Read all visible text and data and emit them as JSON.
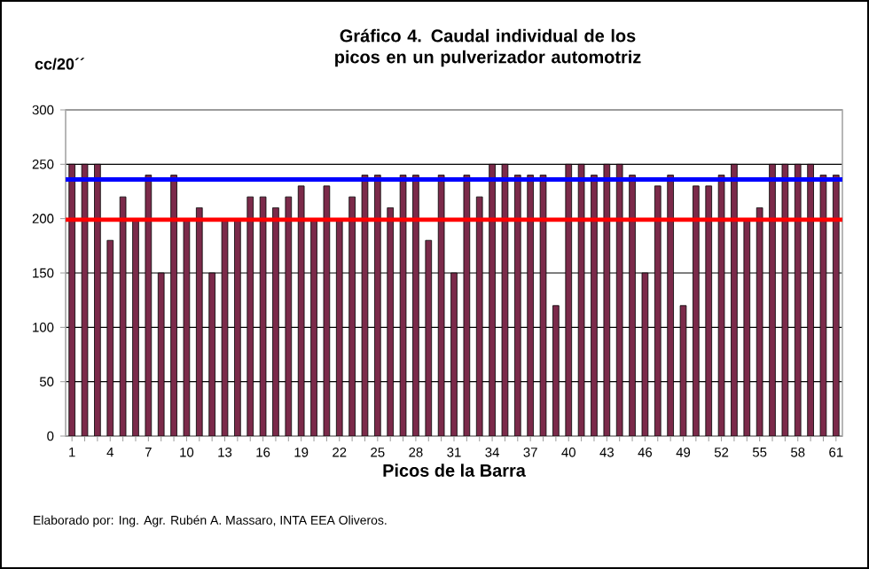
{
  "chart_data": {
    "type": "bar",
    "title": "Gráfico 4. Caudal individual de los picos en un pulverizador automotriz",
    "ylabel": "cc/20´´",
    "xlabel": "Picos de la Barra",
    "annotations": [
      "Elaborado por: Ing. Agr. Rubén A. Massaro, INTA EEA Oliveros."
    ],
    "categories": [
      "1",
      null,
      null,
      "4",
      null,
      null,
      "7",
      null,
      null,
      "10",
      null,
      null,
      "13",
      null,
      null,
      "16",
      null,
      null,
      "19",
      null,
      null,
      "22",
      null,
      null,
      "25",
      null,
      null,
      "28",
      null,
      null,
      "31",
      null,
      null,
      "34",
      null,
      null,
      "37",
      null,
      null,
      "40",
      null,
      null,
      "43",
      null,
      null,
      "46",
      null,
      null,
      "49",
      null,
      null,
      "52",
      null,
      null,
      "55",
      null,
      null,
      "58",
      null,
      null,
      "61"
    ],
    "values": [
      250,
      250,
      250,
      180,
      220,
      200,
      240,
      150,
      240,
      200,
      210,
      150,
      200,
      200,
      220,
      220,
      210,
      220,
      230,
      200,
      230,
      200,
      220,
      240,
      240,
      210,
      240,
      240,
      180,
      240,
      150,
      240,
      220,
      250,
      250,
      240,
      240,
      240,
      120,
      250,
      250,
      240,
      250,
      250,
      240,
      150,
      230,
      240,
      120,
      230,
      230,
      240,
      250,
      200,
      210,
      250,
      250,
      250,
      250,
      240,
      240
    ],
    "color": "#7b2a4a",
    "ylim": [
      0,
      300
    ],
    "yticks": [
      0,
      50,
      100,
      150,
      200,
      250,
      300
    ],
    "grid": "y",
    "ref_lines": [
      {
        "axis": "y",
        "value": 236,
        "label": null,
        "color": "#0000ff"
      },
      {
        "axis": "y",
        "value": 199,
        "label": null,
        "color": "#ff0000"
      }
    ]
  }
}
